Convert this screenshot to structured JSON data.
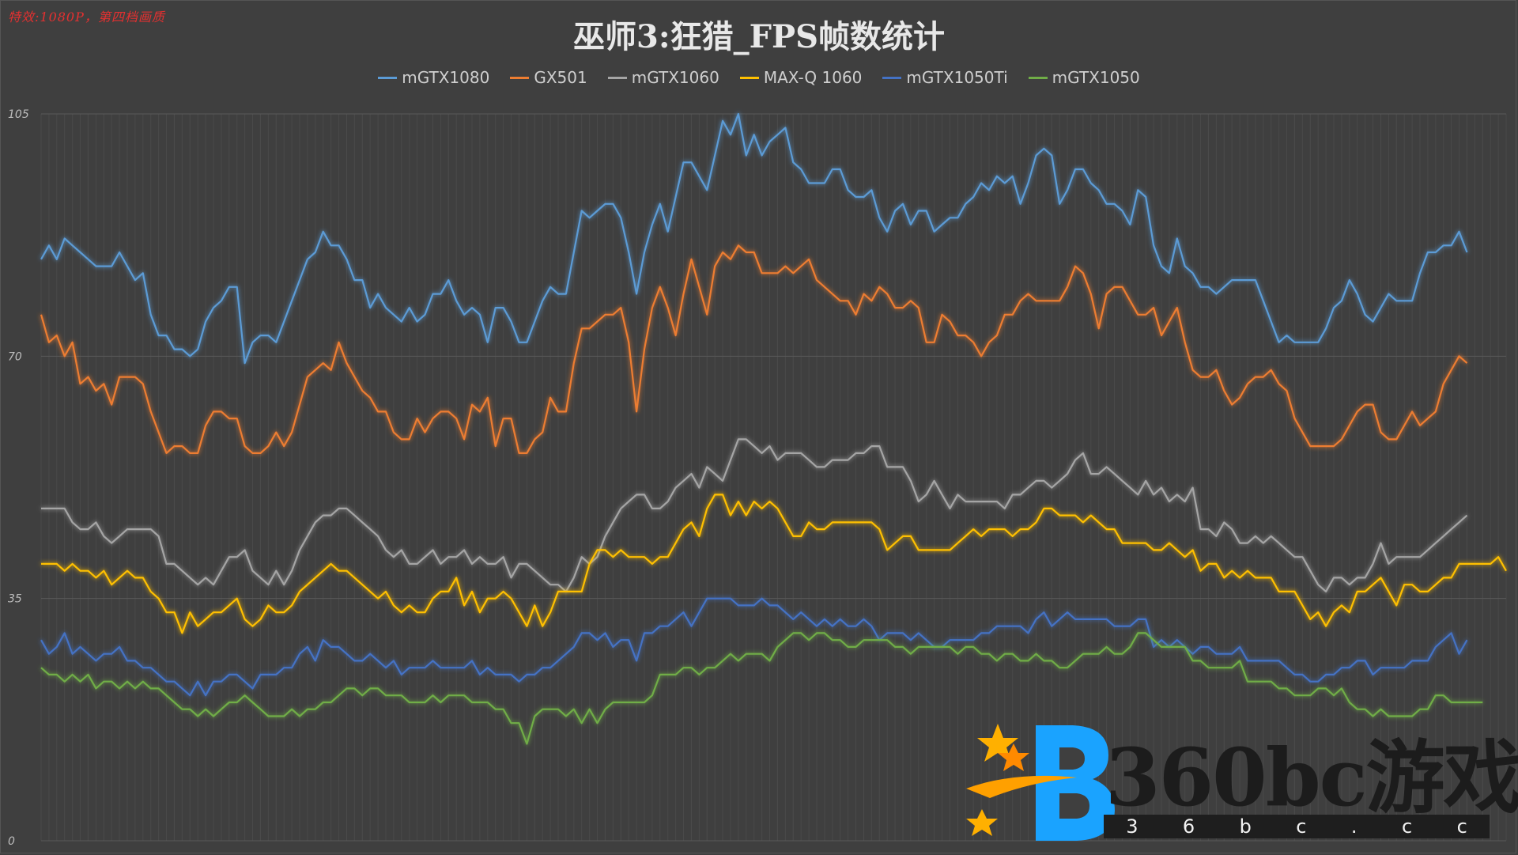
{
  "note": "特效:1080P，第四档画质",
  "title": "巫师3:狂猎_FPS帧数统计",
  "watermark": {
    "text": "360bc游戏",
    "url_chars": [
      "3",
      "6",
      "b",
      "c",
      ".",
      "c",
      "c"
    ]
  },
  "chart_data": {
    "type": "line",
    "title": "巫师3:狂猎_FPS帧数统计",
    "xlabel": "",
    "ylabel": "",
    "ylim": [
      0,
      105
    ],
    "yticks": [
      0,
      35,
      70,
      105
    ],
    "grid": true,
    "legend_position": "top",
    "series": [
      {
        "name": "mGTX1080",
        "color": "#5b9bd5",
        "values": [
          84,
          86,
          84,
          87,
          86,
          85,
          84,
          83,
          83,
          83,
          85,
          83,
          81,
          82,
          76,
          73,
          73,
          71,
          71,
          70,
          71,
          75,
          77,
          78,
          80,
          80,
          69,
          72,
          73,
          73,
          72,
          75,
          78,
          81,
          84,
          85,
          88,
          86,
          86,
          84,
          81,
          81,
          77,
          79,
          77,
          76,
          75,
          77,
          75,
          76,
          79,
          79,
          81,
          78,
          76,
          77,
          76,
          72,
          77,
          77,
          75,
          72,
          72,
          75,
          78,
          80,
          79,
          79,
          85,
          91,
          90,
          91,
          92,
          92,
          90,
          85,
          79,
          85,
          89,
          92,
          88,
          93,
          98,
          98,
          96,
          94,
          99,
          104,
          102,
          105,
          99,
          102,
          99,
          101,
          102,
          103,
          98,
          97,
          95,
          95,
          95,
          97,
          97,
          94,
          93,
          93,
          94,
          90,
          88,
          91,
          92,
          89,
          91,
          91,
          88,
          89,
          90,
          90,
          92,
          93,
          95,
          94,
          96,
          95,
          96,
          92,
          95,
          99,
          100,
          99,
          92,
          94,
          97,
          97,
          95,
          94,
          92,
          92,
          91,
          89,
          94,
          93,
          86,
          83,
          82,
          87,
          83,
          82,
          80,
          80,
          79,
          80,
          81,
          81,
          81,
          81,
          78,
          75,
          72,
          73,
          72,
          72,
          72,
          72,
          74,
          77,
          78,
          81,
          79,
          76,
          75,
          77,
          79,
          78,
          78,
          78,
          82,
          85,
          85,
          86,
          86,
          88,
          85
        ]
      },
      {
        "name": "GX501",
        "color": "#ed7d31",
        "values": [
          76,
          72,
          73,
          70,
          72,
          66,
          67,
          65,
          66,
          63,
          67,
          67,
          67,
          66,
          62,
          59,
          56,
          57,
          57,
          56,
          56,
          60,
          62,
          62,
          61,
          61,
          57,
          56,
          56,
          57,
          59,
          57,
          59,
          63,
          67,
          68,
          69,
          68,
          72,
          69,
          67,
          65,
          64,
          62,
          62,
          59,
          58,
          58,
          61,
          59,
          61,
          62,
          62,
          61,
          58,
          63,
          62,
          64,
          57,
          61,
          61,
          56,
          56,
          58,
          59,
          64,
          62,
          62,
          69,
          74,
          74,
          75,
          76,
          76,
          77,
          72,
          62,
          71,
          77,
          80,
          77,
          73,
          79,
          84,
          80,
          76,
          83,
          85,
          84,
          86,
          85,
          85,
          82,
          82,
          82,
          83,
          82,
          83,
          84,
          81,
          80,
          79,
          78,
          78,
          76,
          79,
          78,
          80,
          79,
          77,
          77,
          78,
          77,
          72,
          72,
          76,
          75,
          73,
          73,
          72,
          70,
          72,
          73,
          76,
          76,
          78,
          79,
          78,
          78,
          78,
          78,
          80,
          83,
          82,
          79,
          74,
          79,
          80,
          80,
          78,
          76,
          76,
          77,
          73,
          75,
          77,
          72,
          68,
          67,
          67,
          68,
          65,
          63,
          64,
          66,
          67,
          67,
          68,
          66,
          65,
          61,
          59,
          57,
          57,
          57,
          57,
          58,
          60,
          62,
          63,
          63,
          59,
          58,
          58,
          60,
          62,
          60,
          61,
          62,
          66,
          68,
          70,
          69
        ]
      },
      {
        "name": "mGTX1060",
        "color": "#a5a5a5",
        "values": [
          48,
          48,
          48,
          48,
          46,
          45,
          45,
          46,
          44,
          43,
          44,
          45,
          45,
          45,
          45,
          44,
          40,
          40,
          39,
          38,
          37,
          38,
          37,
          39,
          41,
          41,
          42,
          39,
          38,
          37,
          39,
          37,
          39,
          42,
          44,
          46,
          47,
          47,
          48,
          48,
          47,
          46,
          45,
          44,
          42,
          41,
          42,
          40,
          40,
          41,
          42,
          40,
          41,
          41,
          42,
          40,
          41,
          40,
          40,
          41,
          38,
          40,
          40,
          39,
          38,
          37,
          37,
          36,
          38,
          41,
          40,
          41,
          44,
          46,
          48,
          49,
          50,
          50,
          48,
          48,
          49,
          51,
          52,
          53,
          51,
          54,
          53,
          52,
          55,
          58,
          58,
          57,
          56,
          57,
          55,
          56,
          56,
          56,
          55,
          54,
          54,
          55,
          55,
          55,
          56,
          56,
          57,
          57,
          54,
          54,
          54,
          52,
          49,
          50,
          52,
          50,
          48,
          50,
          49,
          49,
          49,
          49,
          49,
          48,
          50,
          50,
          51,
          52,
          52,
          51,
          52,
          53,
          55,
          56,
          53,
          53,
          54,
          53,
          52,
          51,
          50,
          52,
          50,
          51,
          49,
          50,
          49,
          51,
          45,
          45,
          44,
          46,
          45,
          43,
          43,
          44,
          43,
          44,
          43,
          42,
          41,
          41,
          39,
          37,
          36,
          38,
          38,
          37,
          38,
          38,
          40,
          43,
          40,
          41,
          41,
          41,
          41,
          42,
          43,
          44,
          45,
          46,
          47
        ]
      },
      {
        "name": "MAX-Q 1060",
        "color": "#ffc000",
        "values": [
          40,
          40,
          40,
          39,
          40,
          39,
          39,
          38,
          39,
          37,
          38,
          39,
          38,
          38,
          36,
          35,
          33,
          33,
          30,
          33,
          31,
          32,
          33,
          33,
          34,
          35,
          32,
          31,
          32,
          34,
          33,
          33,
          34,
          36,
          37,
          38,
          39,
          40,
          39,
          39,
          38,
          37,
          36,
          35,
          36,
          34,
          33,
          34,
          33,
          33,
          35,
          36,
          36,
          38,
          34,
          36,
          33,
          35,
          35,
          36,
          35,
          33,
          31,
          34,
          31,
          33,
          36,
          36,
          36,
          36,
          40,
          42,
          42,
          41,
          42,
          41,
          41,
          41,
          40,
          41,
          41,
          43,
          45,
          46,
          44,
          48,
          50,
          50,
          47,
          49,
          47,
          49,
          48,
          49,
          48,
          46,
          44,
          44,
          46,
          45,
          45,
          46,
          46,
          46,
          46,
          46,
          46,
          45,
          42,
          43,
          44,
          44,
          42,
          42,
          42,
          42,
          42,
          43,
          44,
          45,
          44,
          45,
          45,
          45,
          44,
          45,
          45,
          46,
          48,
          48,
          47,
          47,
          47,
          46,
          47,
          46,
          45,
          45,
          43,
          43,
          43,
          43,
          42,
          42,
          43,
          42,
          41,
          42,
          39,
          40,
          40,
          38,
          39,
          38,
          39,
          38,
          38,
          38,
          36,
          36,
          36,
          34,
          32,
          33,
          31,
          33,
          34,
          33,
          36,
          36,
          37,
          38,
          36,
          34,
          37,
          37,
          36,
          36,
          37,
          38,
          38,
          40,
          40,
          40,
          40,
          40,
          41,
          39
        ]
      },
      {
        "name": "mGTX1050Ti",
        "color": "#4472c4",
        "values": [
          29,
          27,
          28,
          30,
          27,
          28,
          27,
          26,
          27,
          27,
          28,
          26,
          26,
          25,
          25,
          24,
          23,
          23,
          22,
          21,
          23,
          21,
          23,
          23,
          24,
          24,
          23,
          22,
          24,
          24,
          24,
          25,
          25,
          27,
          28,
          26,
          29,
          28,
          28,
          27,
          26,
          26,
          27,
          26,
          25,
          26,
          24,
          25,
          25,
          25,
          26,
          25,
          25,
          25,
          25,
          26,
          24,
          25,
          24,
          24,
          24,
          23,
          24,
          24,
          25,
          25,
          26,
          27,
          28,
          30,
          30,
          29,
          30,
          28,
          29,
          29,
          26,
          30,
          30,
          31,
          31,
          32,
          33,
          31,
          33,
          35,
          35,
          35,
          35,
          34,
          34,
          34,
          35,
          34,
          34,
          33,
          32,
          33,
          32,
          31,
          32,
          31,
          32,
          31,
          31,
          32,
          31,
          29,
          30,
          30,
          30,
          29,
          30,
          29,
          28,
          28,
          29,
          29,
          29,
          29,
          30,
          30,
          31,
          31,
          31,
          31,
          30,
          32,
          33,
          31,
          32,
          33,
          32,
          32,
          32,
          32,
          32,
          31,
          31,
          31,
          32,
          32,
          28,
          29,
          28,
          29,
          28,
          27,
          28,
          28,
          27,
          27,
          27,
          28,
          26,
          26,
          26,
          26,
          26,
          25,
          24,
          24,
          23,
          23,
          24,
          24,
          25,
          25,
          26,
          26,
          24,
          25,
          25,
          25,
          25,
          26,
          26,
          26,
          28,
          29,
          30,
          27,
          29
        ]
      },
      {
        "name": "mGTX1050",
        "color": "#70ad47",
        "values": [
          25,
          24,
          24,
          23,
          24,
          23,
          24,
          22,
          23,
          23,
          22,
          23,
          22,
          23,
          22,
          22,
          21,
          20,
          19,
          19,
          18,
          19,
          18,
          19,
          20,
          20,
          21,
          20,
          19,
          18,
          18,
          18,
          19,
          18,
          19,
          19,
          20,
          20,
          21,
          22,
          22,
          21,
          22,
          22,
          21,
          21,
          21,
          20,
          20,
          20,
          21,
          20,
          21,
          21,
          21,
          20,
          20,
          20,
          19,
          19,
          17,
          17,
          14,
          18,
          19,
          19,
          19,
          18,
          19,
          17,
          19,
          17,
          19,
          20,
          20,
          20,
          20,
          20,
          21,
          24,
          24,
          24,
          25,
          25,
          24,
          25,
          25,
          26,
          27,
          26,
          27,
          27,
          27,
          26,
          28,
          29,
          30,
          30,
          29,
          30,
          30,
          29,
          29,
          28,
          28,
          29,
          29,
          29,
          29,
          28,
          28,
          27,
          28,
          28,
          28,
          28,
          28,
          27,
          28,
          28,
          27,
          27,
          26,
          27,
          27,
          26,
          26,
          27,
          26,
          26,
          25,
          25,
          26,
          27,
          27,
          27,
          28,
          27,
          27,
          28,
          30,
          30,
          29,
          28,
          28,
          28,
          28,
          26,
          26,
          25,
          25,
          25,
          25,
          26,
          23,
          23,
          23,
          23,
          22,
          22,
          21,
          21,
          21,
          22,
          22,
          21,
          22,
          20,
          19,
          19,
          18,
          19,
          18,
          18,
          18,
          18,
          19,
          19,
          21,
          21,
          20,
          20,
          20,
          20,
          20
        ]
      }
    ]
  }
}
